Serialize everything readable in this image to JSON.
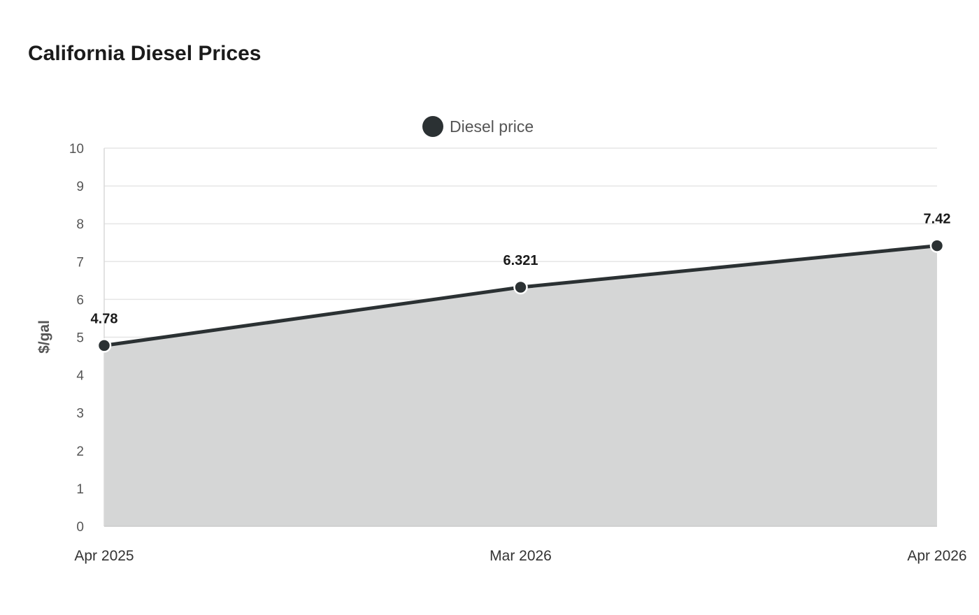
{
  "chart_data": {
    "type": "area",
    "title": "California Diesel Prices",
    "ylabel": "$/gal",
    "xlabel": "",
    "categories": [
      "Apr 2025",
      "Mar 2026",
      "Apr 2026"
    ],
    "series": [
      {
        "name": "Diesel price",
        "values": [
          4.78,
          6.321,
          7.42
        ],
        "color": "#2b3133",
        "fill_color": "#d5d6d6"
      }
    ],
    "ylim": [
      0,
      10
    ],
    "yticks": [
      0,
      1,
      2,
      3,
      4,
      5,
      6,
      7,
      8,
      9,
      10
    ],
    "data_labels": [
      "4.78",
      "6.321",
      "7.42"
    ],
    "grid": true,
    "legend_position": "top-center"
  }
}
